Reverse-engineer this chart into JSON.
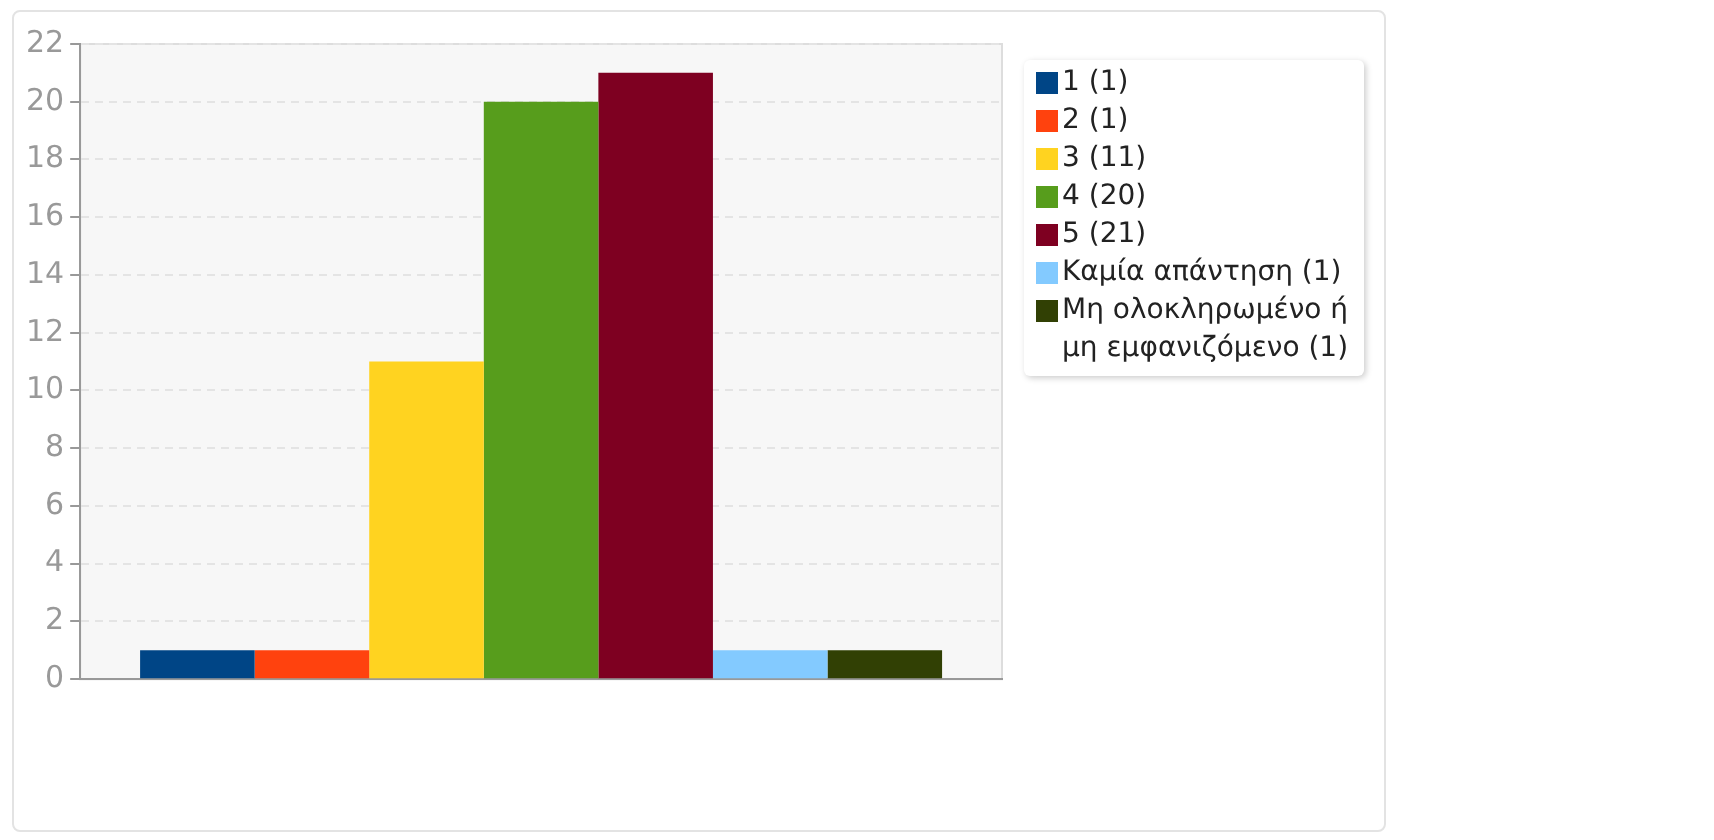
{
  "chart_data": {
    "type": "bar",
    "categories": [
      null
    ],
    "series": [
      {
        "name": "1 (1)",
        "color": "#004586",
        "values": [
          1
        ]
      },
      {
        "name": "2 (1)",
        "color": "#ff420e",
        "values": [
          1
        ]
      },
      {
        "name": "3 (11)",
        "color": "#ffd320",
        "values": [
          11
        ]
      },
      {
        "name": "4 (20)",
        "color": "#579d1c",
        "values": [
          20
        ]
      },
      {
        "name": "5 (21)",
        "color": "#7e0021",
        "values": [
          21
        ]
      },
      {
        "name": "Καμία απάντηση (1)",
        "color": "#83caff",
        "values": [
          1
        ]
      },
      {
        "name": "Μη ολοκληρωμένο ή μη εμφανιζόμενο (1)",
        "color": "#314004",
        "values": [
          1
        ]
      }
    ],
    "ylim": [
      0,
      22
    ],
    "yticks": [
      0,
      2,
      4,
      6,
      8,
      10,
      12,
      14,
      16,
      18,
      20,
      22
    ],
    "grid": "y",
    "legend": "right"
  }
}
